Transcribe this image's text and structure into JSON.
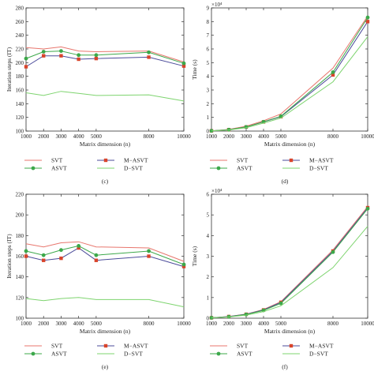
{
  "colors": {
    "svt": "#e8766d",
    "msvt": "#d9442b",
    "asvt": "#3ca84a",
    "dsvt": "#7ed46f",
    "masvt_line": "#4b4b9a",
    "axis": "#333333"
  },
  "chart_data": [
    {
      "id": "c",
      "type": "line",
      "caption": "(c)",
      "xlabel": "Matrix dimension (n)",
      "ylabel": "Iteration steps (IT)",
      "x": [
        1000,
        2000,
        3000,
        4000,
        5000,
        8000,
        10000
      ],
      "xticks": [
        "1000",
        "2000",
        "3000",
        "4000",
        "5000",
        "8000",
        "10000"
      ],
      "ylim": [
        100,
        280
      ],
      "yticks": [
        100,
        120,
        140,
        160,
        180,
        200,
        220,
        240,
        260,
        280
      ],
      "yscale_note": "",
      "series": [
        {
          "name": "SVT",
          "values": [
            222,
            220,
            223,
            217,
            216,
            217,
            201
          ],
          "color": "#e8766d",
          "marker": "none"
        },
        {
          "name": "M−ASVT",
          "values": [
            194,
            210,
            210,
            205,
            206,
            208,
            195
          ],
          "color": "#4b4b9a",
          "marker": "square",
          "marker_color": "#d9442b"
        },
        {
          "name": "ASVT",
          "values": [
            206,
            216,
            217,
            211,
            211,
            215,
            199
          ],
          "color": "#3ca84a",
          "marker": "circle"
        },
        {
          "name": "D−SVT",
          "values": [
            156,
            152,
            158,
            155,
            152,
            153,
            144
          ],
          "color": "#7ed46f",
          "marker": "none"
        }
      ],
      "legend": [
        "SVT",
        "M−ASVT",
        "ASVT",
        "D−SVT"
      ],
      "grid": false,
      "legend_placement": "below"
    },
    {
      "id": "d",
      "type": "line",
      "caption": "(d)",
      "xlabel": "Matrix dimension (n)",
      "ylabel": "Time (s)",
      "x": [
        1000,
        2000,
        3000,
        4000,
        5000,
        8000,
        10000
      ],
      "xticks": [
        "1000",
        "2000",
        "3000",
        "4000",
        "5000",
        "8000",
        "10000"
      ],
      "ylim": [
        0,
        9
      ],
      "yticks": [
        0,
        1,
        2,
        3,
        4,
        5,
        6,
        7,
        8,
        9
      ],
      "yscale_note": "×10⁴",
      "series": [
        {
          "name": "SVT",
          "values": [
            0.02,
            0.12,
            0.35,
            0.75,
            1.25,
            4.6,
            8.4
          ],
          "color": "#e8766d",
          "marker": "none"
        },
        {
          "name": "M−ASVT",
          "values": [
            0.02,
            0.1,
            0.3,
            0.67,
            1.05,
            4.1,
            8.0
          ],
          "color": "#4b4b9a",
          "marker": "square",
          "marker_color": "#d9442b"
        },
        {
          "name": "ASVT",
          "values": [
            0.02,
            0.1,
            0.3,
            0.68,
            1.08,
            4.3,
            8.3
          ],
          "color": "#3ca84a",
          "marker": "circle"
        },
        {
          "name": "D−SVT",
          "values": [
            0.02,
            0.08,
            0.25,
            0.58,
            0.95,
            3.6,
            6.9
          ],
          "color": "#7ed46f",
          "marker": "none"
        }
      ],
      "legend": [
        "SVT",
        "M−ASVT",
        "ASVT",
        "D−SVT"
      ],
      "grid": false,
      "legend_placement": "below"
    },
    {
      "id": "e",
      "type": "line",
      "caption": "(e)",
      "xlabel": "Matrix dimension (n)",
      "ylabel": "Iteration steps (IT)",
      "x": [
        1000,
        2000,
        3000,
        4000,
        5000,
        8000,
        10000
      ],
      "xticks": [
        "1000",
        "2000",
        "3000",
        "4000",
        "5000",
        "8000",
        "10000"
      ],
      "ylim": [
        100,
        220
      ],
      "yticks": [
        100,
        120,
        140,
        160,
        180,
        200,
        220
      ],
      "yscale_note": "",
      "series": [
        {
          "name": "SVT",
          "values": [
            172,
            169,
            173,
            174,
            169,
            168,
            155
          ],
          "color": "#e8766d",
          "marker": "none"
        },
        {
          "name": "M−ASVT",
          "values": [
            160,
            156,
            158,
            168,
            156,
            160,
            150
          ],
          "color": "#4b4b9a",
          "marker": "square",
          "marker_color": "#d9442b"
        },
        {
          "name": "ASVT",
          "values": [
            165,
            161,
            166,
            170,
            161,
            165,
            152
          ],
          "color": "#3ca84a",
          "marker": "circle"
        },
        {
          "name": "D−SVT",
          "values": [
            119,
            117,
            119,
            120,
            118,
            118,
            111
          ],
          "color": "#7ed46f",
          "marker": "none"
        }
      ],
      "legend": [
        "SVT",
        "M−ASVT",
        "ASVT",
        "D−SVT"
      ],
      "grid": false,
      "legend_placement": "below"
    },
    {
      "id": "f",
      "type": "line",
      "caption": "(f)",
      "xlabel": "Matrix dimension (n)",
      "ylabel": "Time (s)",
      "x": [
        1000,
        2000,
        3000,
        4000,
        5000,
        8000,
        10000
      ],
      "xticks": [
        "1000",
        "2000",
        "3000",
        "4000",
        "5000",
        "8000",
        "10000"
      ],
      "ylim": [
        0,
        6
      ],
      "yticks": [
        0,
        1,
        2,
        3,
        4,
        5,
        6
      ],
      "yscale_note": "×10⁴",
      "series": [
        {
          "name": "SVT",
          "values": [
            0.02,
            0.08,
            0.2,
            0.42,
            0.8,
            3.3,
            5.4
          ],
          "color": "#e8766d",
          "marker": "none"
        },
        {
          "name": "M−ASVT",
          "values": [
            0.02,
            0.08,
            0.19,
            0.4,
            0.77,
            3.25,
            5.35
          ],
          "color": "#4b4b9a",
          "marker": "square",
          "marker_color": "#d9442b"
        },
        {
          "name": "ASVT",
          "values": [
            0.02,
            0.07,
            0.18,
            0.38,
            0.72,
            3.2,
            5.3
          ],
          "color": "#3ca84a",
          "marker": "circle"
        },
        {
          "name": "D−SVT",
          "values": [
            0.02,
            0.06,
            0.15,
            0.32,
            0.6,
            2.45,
            4.45
          ],
          "color": "#7ed46f",
          "marker": "none"
        }
      ],
      "legend": [
        "SVT",
        "M−ASVT",
        "ASVT",
        "D−SVT"
      ],
      "grid": false,
      "legend_placement": "below"
    }
  ]
}
